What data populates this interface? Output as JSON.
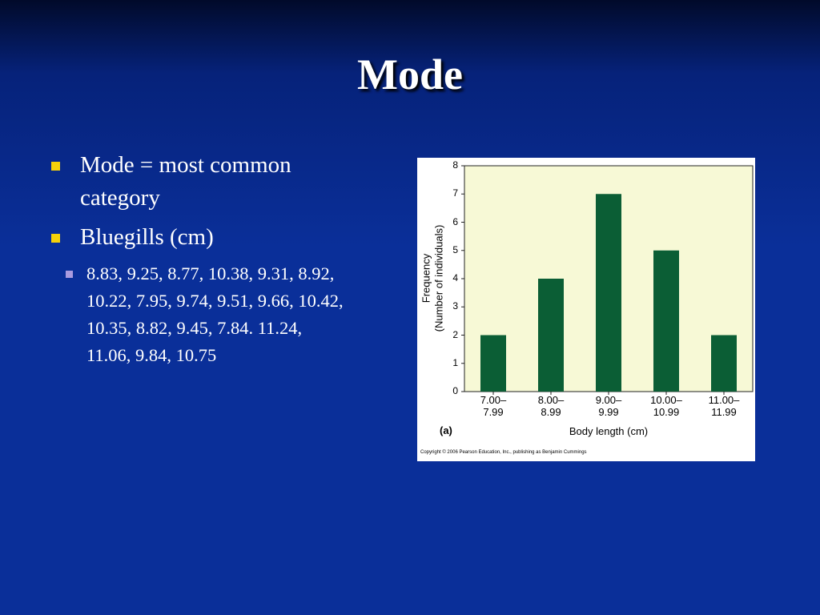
{
  "title": "Mode",
  "bullets": [
    {
      "text": "Mode = most common category"
    },
    {
      "text": "Bluegills (cm)",
      "sub": [
        "8.83, 9.25, 8.77, 10.38, 9.31, 8.92, 10.22, 7.95, 9.74, 9.51, 9.66, 10.42, 10.35, 8.82, 9.45, 7.84. 11.24, 11.06, 9.84, 10.75"
      ]
    }
  ],
  "chart_data": {
    "type": "bar",
    "categories": [
      "7.00–7.99",
      "8.00–8.99",
      "9.00–9.99",
      "10.00–10.99",
      "11.00–11.99"
    ],
    "values": [
      2,
      4,
      7,
      5,
      2
    ],
    "color": "#0b5e35",
    "ylim": [
      0,
      8
    ],
    "yticks": [
      0,
      1,
      2,
      3,
      4,
      5,
      6,
      7,
      8
    ],
    "ylabel": [
      "Frequency",
      "(Number of individuals)"
    ],
    "xlabel": "Body length (cm)",
    "panel_label": "(a)",
    "copyright": "Copyright © 2006 Pearson Education, Inc., publishing as Benjamin Cummings"
  }
}
